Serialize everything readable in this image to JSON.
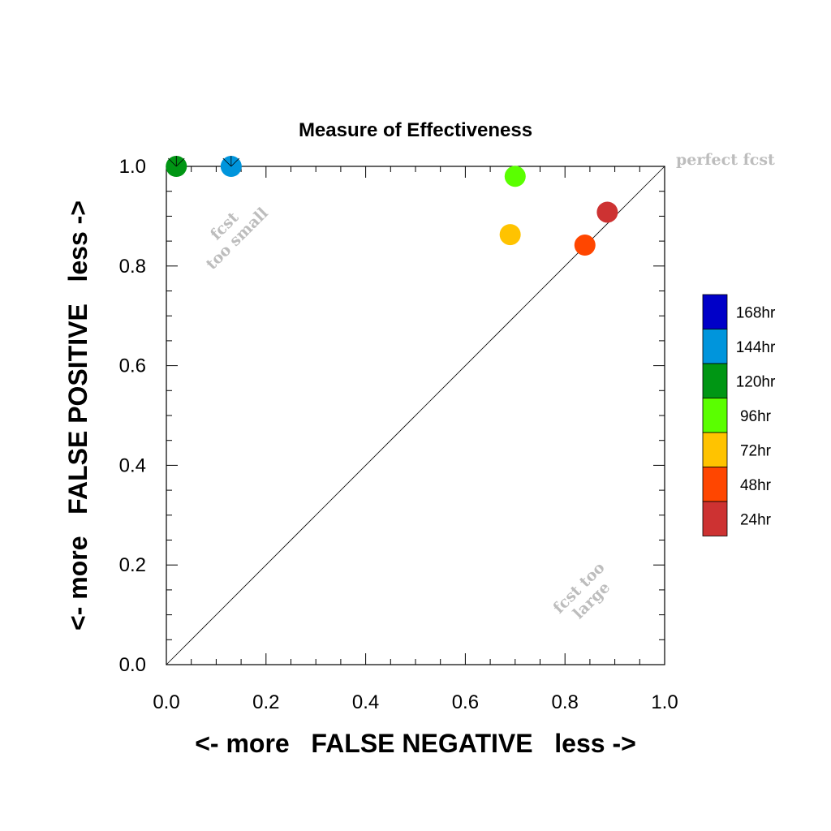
{
  "chart_data": {
    "type": "scatter",
    "title": "Measure of Effectiveness",
    "xlabel": "<- more   FALSE NEGATIVE   less ->",
    "ylabel": "<- more   FALSE POSITIVE   less ->",
    "xlim": [
      0,
      1
    ],
    "ylim": [
      0,
      1
    ],
    "xticks": [
      "0.0",
      "0.2",
      "0.4",
      "0.6",
      "0.8",
      "1.0"
    ],
    "yticks": [
      "0.0",
      "0.2",
      "0.4",
      "0.6",
      "0.8",
      "1.0"
    ],
    "grid": false,
    "diagonal_line": true,
    "annotations": {
      "top_right": "perfect fcst",
      "upper_left_line1": "fcst",
      "upper_left_line2": "too small",
      "lower_right_line1": "fcst too",
      "lower_right_line2": "large"
    },
    "legend_position": "right",
    "series": [
      {
        "name": "168hr",
        "color": "#0000c8",
        "x": null,
        "y": null
      },
      {
        "name": "144hr",
        "color": "#0095dc",
        "x": 0.13,
        "y": 1.0
      },
      {
        "name": "120hr",
        "color": "#009614",
        "x": 0.02,
        "y": 1.0
      },
      {
        "name": "96hr",
        "color": "#5aff00",
        "x": 0.7,
        "y": 0.98
      },
      {
        "name": "72hr",
        "color": "#ffc300",
        "x": 0.69,
        "y": 0.863
      },
      {
        "name": "48hr",
        "color": "#ff4600",
        "x": 0.84,
        "y": 0.842
      },
      {
        "name": "24hr",
        "color": "#cd3232",
        "x": 0.885,
        "y": 0.908
      }
    ]
  }
}
